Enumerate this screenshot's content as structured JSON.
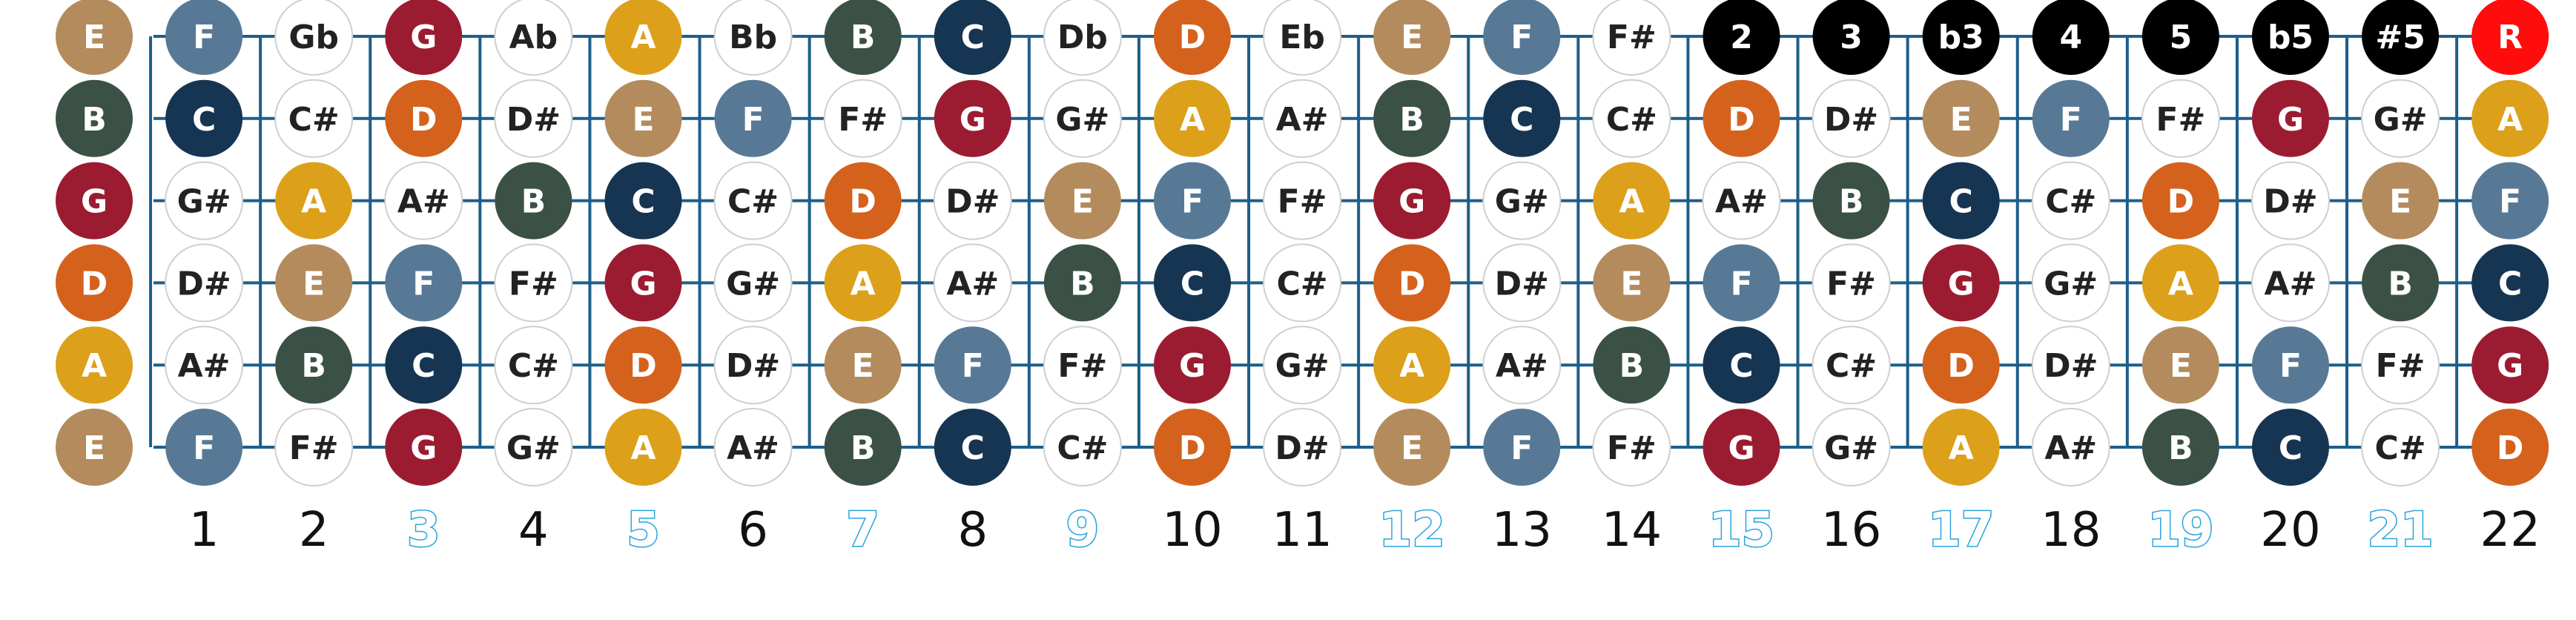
{
  "colors": {
    "string_line": "#1d5f8a",
    "natural": {
      "C": "#163552",
      "D": "#d4621d",
      "E": "#b38b5d",
      "F": "#577995",
      "G": "#9b1c31",
      "A": "#dca01b",
      "B": "#3c5145"
    },
    "sharp_fill": "#ffffff",
    "sharp_border": "#cfcfcf",
    "sharp_text": "#222222",
    "natural_text": "#ffffff",
    "interval_fill": "#000000",
    "root_fill": "#ff0c0c",
    "fret_marker_text": "#29a3dd"
  },
  "fretboard": {
    "strings": [
      [
        "E",
        "F",
        "Gb",
        "G",
        "Ab",
        "A",
        "Bb",
        "B",
        "C",
        "Db",
        "D",
        "Eb",
        "E",
        "F",
        "F#",
        "2",
        "3",
        "b3",
        "4",
        "5",
        "b5",
        "#5",
        "R"
      ],
      [
        "B",
        "C",
        "C#",
        "D",
        "D#",
        "E",
        "F",
        "F#",
        "G",
        "G#",
        "A",
        "A#",
        "B",
        "C",
        "C#",
        "D",
        "D#",
        "E",
        "F",
        "F#",
        "G",
        "G#",
        "A"
      ],
      [
        "G",
        "G#",
        "A",
        "A#",
        "B",
        "C",
        "C#",
        "D",
        "D#",
        "E",
        "F",
        "F#",
        "G",
        "G#",
        "A",
        "A#",
        "B",
        "C",
        "C#",
        "D",
        "D#",
        "E",
        "F"
      ],
      [
        "D",
        "D#",
        "E",
        "F",
        "F#",
        "G",
        "G#",
        "A",
        "A#",
        "B",
        "C",
        "C#",
        "D",
        "D#",
        "E",
        "F",
        "F#",
        "G",
        "G#",
        "A",
        "A#",
        "B",
        "C"
      ],
      [
        "A",
        "A#",
        "B",
        "C",
        "C#",
        "D",
        "D#",
        "E",
        "F",
        "F#",
        "G",
        "G#",
        "A",
        "A#",
        "B",
        "C",
        "C#",
        "D",
        "D#",
        "E",
        "F",
        "F#",
        "G"
      ],
      [
        "E",
        "F",
        "F#",
        "G",
        "G#",
        "A",
        "A#",
        "B",
        "C",
        "C#",
        "D",
        "D#",
        "E",
        "F",
        "F#",
        "G",
        "G#",
        "A",
        "A#",
        "B",
        "C",
        "C#",
        "D"
      ]
    ],
    "interval_labels": [
      "2",
      "3",
      "b3",
      "4",
      "5",
      "b5",
      "#5"
    ],
    "root_label": "R",
    "fret_numbers": [
      "1",
      "2",
      "3",
      "4",
      "5",
      "6",
      "7",
      "8",
      "9",
      "10",
      "11",
      "12",
      "13",
      "14",
      "15",
      "16",
      "17",
      "18",
      "19",
      "20",
      "21",
      "22"
    ],
    "marker_frets": [
      "3",
      "5",
      "7",
      "9",
      "12",
      "15",
      "17",
      "19",
      "21"
    ]
  }
}
